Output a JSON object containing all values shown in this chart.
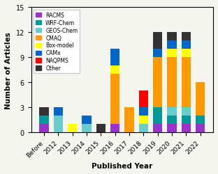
{
  "categories": [
    "Before",
    "2012",
    "2013",
    "2014",
    "2015",
    "2016",
    "2017",
    "2018",
    "2019",
    "2020",
    "2021",
    "2022"
  ],
  "series": {
    "RACMS": [
      1,
      0,
      0,
      0,
      0,
      1,
      0,
      0,
      1,
      1,
      1,
      1
    ],
    "WRF-Chem": [
      1,
      0,
      0,
      0,
      0,
      0,
      0,
      0,
      2,
      1,
      1,
      1
    ],
    "GEOS-Chem": [
      0,
      2,
      0,
      1,
      0,
      0,
      0,
      1,
      0,
      1,
      1,
      0
    ],
    "CMAQ": [
      0,
      0,
      0,
      0,
      0,
      6,
      3,
      0,
      6,
      6,
      6,
      4
    ],
    "Box-model": [
      0,
      0,
      1,
      0,
      0,
      1,
      0,
      1,
      0,
      1,
      1,
      0
    ],
    "CAMx": [
      0,
      1,
      0,
      1,
      0,
      2,
      0,
      1,
      1,
      1,
      1,
      0
    ],
    "NAQPMS": [
      0,
      0,
      0,
      0,
      0,
      0,
      0,
      2,
      0,
      0,
      0,
      0
    ],
    "Other": [
      1,
      0,
      0,
      0,
      1,
      0,
      0,
      0,
      2,
      1,
      1,
      0
    ]
  },
  "colors": {
    "RACMS": "#9933CC",
    "WRF-Chem": "#009999",
    "GEOS-Chem": "#66CCCC",
    "CMAQ": "#FF9900",
    "Box-model": "#FFFF00",
    "CAMx": "#0066CC",
    "NAQPMS": "#FF0000",
    "Other": "#333333"
  },
  "ylim": [
    0,
    15
  ],
  "yticks": [
    0,
    3,
    6,
    9,
    12,
    15
  ],
  "xlabel": "Published Year",
  "ylabel": "Number of Articles",
  "bg_color": "#f5f5f0"
}
